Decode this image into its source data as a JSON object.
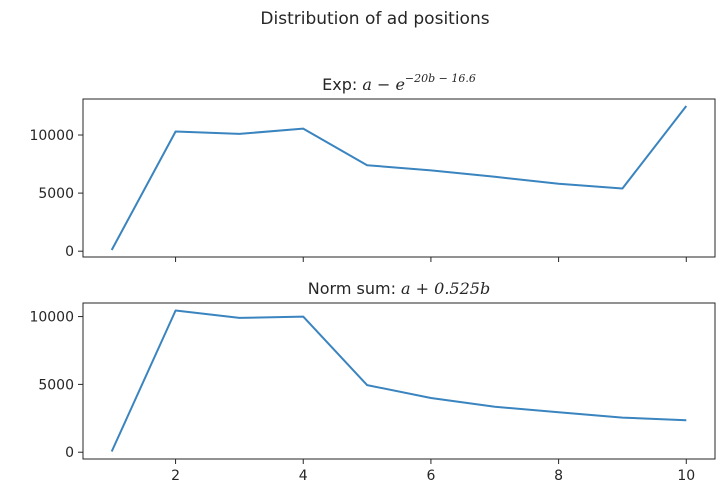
{
  "figure": {
    "suptitle": "Distribution of ad positions"
  },
  "chart_data": [
    {
      "type": "line",
      "title_prefix": "Exp: ",
      "title_math": "a − e",
      "title_exponent": "−20b − 16.6",
      "x": [
        1,
        2,
        3,
        4,
        5,
        6,
        7,
        8,
        9,
        10
      ],
      "series": [
        {
          "values": [
            100,
            10300,
            10100,
            10550,
            7400,
            6950,
            6400,
            5800,
            5400,
            12500
          ]
        }
      ],
      "xlim": [
        0.55,
        10.45
      ],
      "ylim": [
        -500,
        13100
      ],
      "yticks": [
        0,
        5000,
        10000
      ],
      "xticks": [
        2,
        4,
        6,
        8,
        10
      ],
      "xtick_labels_shown": false,
      "line_color": "#3a84bf",
      "grid": false
    },
    {
      "type": "line",
      "title_prefix": "Norm sum: ",
      "title_math": "a + 0.525b",
      "x": [
        1,
        2,
        3,
        4,
        5,
        6,
        7,
        8,
        9,
        10
      ],
      "series": [
        {
          "values": [
            50,
            10450,
            9900,
            10000,
            4950,
            4000,
            3350,
            2950,
            2550,
            2350
          ]
        }
      ],
      "xlim": [
        0.55,
        10.45
      ],
      "ylim": [
        -500,
        11000
      ],
      "yticks": [
        0,
        5000,
        10000
      ],
      "xticks": [
        2,
        4,
        6,
        8,
        10
      ],
      "xtick_labels_shown": true,
      "line_color": "#3a84bf",
      "grid": false
    }
  ]
}
